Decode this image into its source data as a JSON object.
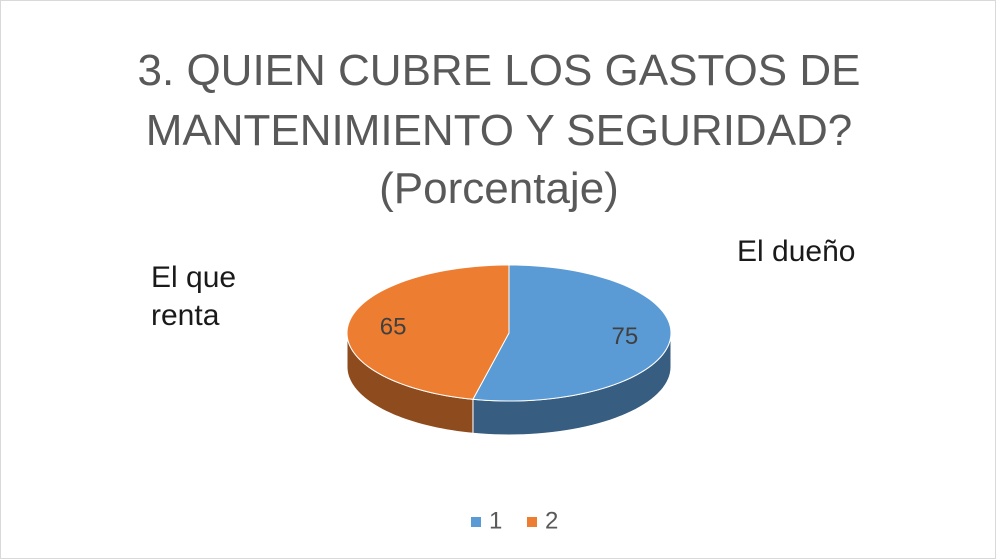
{
  "chart_data": {
    "type": "pie",
    "title": "3. QUIEN CUBRE LOS GASTOS DE MANTENIMIENTO Y SEGURIDAD?",
    "subtitle": "(Porcentaje)",
    "categories": [
      "1",
      "2"
    ],
    "values": [
      75,
      65
    ],
    "colors": [
      "#5b9bd5",
      "#ed7d31"
    ],
    "annotations": [
      "El dueño",
      "El que renta"
    ],
    "legend": "bottom"
  }
}
